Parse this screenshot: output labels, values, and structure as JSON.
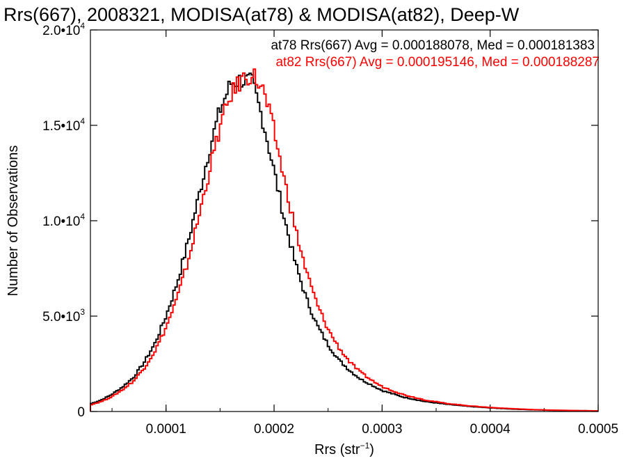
{
  "chart_data": {
    "type": "line",
    "title": "Rrs(667), 2008321, MODISA(at78) & MODISA(at82), Deep-W",
    "xlabel_main": "Rrs (str",
    "xlabel_sup": "−1",
    "xlabel_close": ")",
    "ylabel": "Number of Observations",
    "xlim": [
      3e-05,
      0.0005
    ],
    "ylim": [
      0,
      20000
    ],
    "x_ticks": [
      {
        "value": 0.0001,
        "label": "0.0001"
      },
      {
        "value": 0.0002,
        "label": "0.0002"
      },
      {
        "value": 0.0003,
        "label": "0.0003"
      },
      {
        "value": 0.0004,
        "label": "0.0004"
      },
      {
        "value": 0.0005,
        "label": "0.0005"
      }
    ],
    "y_ticks": [
      {
        "value": 0,
        "mant": "0",
        "exp": ""
      },
      {
        "value": 5000,
        "mant": "5.0•10",
        "exp": "3"
      },
      {
        "value": 10000,
        "mant": "1.0•10",
        "exp": "4"
      },
      {
        "value": 15000,
        "mant": "1.5•10",
        "exp": "4"
      },
      {
        "value": 20000,
        "mant": "2.0•10",
        "exp": "4"
      }
    ],
    "annotations": [
      {
        "text": "at78 Rrs(667) Avg = 0.000188078, Med = 0.000181383",
        "color": "#000000"
      },
      {
        "text": "at82 Rrs(667) Avg = 0.000195146, Med = 0.000188287",
        "color": "#ff0000"
      }
    ],
    "series": [
      {
        "color": "#000000",
        "x": [
          3e-05,
          4e-05,
          5e-05,
          6e-05,
          7e-05,
          8e-05,
          9e-05,
          0.0001,
          0.00011,
          0.00012,
          0.00013,
          0.00014,
          0.00015,
          0.00016,
          0.00017,
          0.00018,
          0.00019,
          0.0002,
          0.00021,
          0.00022,
          0.00023,
          0.00024,
          0.00025,
          0.00026,
          0.00027,
          0.00028,
          0.00029,
          0.0003,
          0.00032,
          0.00034,
          0.00036,
          0.00038,
          0.0004,
          0.00042,
          0.00044,
          0.00046,
          0.00048,
          0.0005
        ],
        "values": [
          400,
          600,
          900,
          1300,
          1800,
          2600,
          3600,
          5000,
          6700,
          8800,
          11200,
          13700,
          15800,
          17200,
          17400,
          17200,
          15200,
          12600,
          10000,
          7700,
          5900,
          4500,
          3500,
          2700,
          2150,
          1700,
          1400,
          1100,
          750,
          520,
          380,
          270,
          190,
          130,
          90,
          60,
          45,
          30
        ]
      },
      {
        "color": "#ff0000",
        "x": [
          3e-05,
          4e-05,
          5e-05,
          6e-05,
          7e-05,
          8e-05,
          9e-05,
          0.0001,
          0.00011,
          0.00012,
          0.00013,
          0.00014,
          0.00015,
          0.00016,
          0.00017,
          0.00018,
          0.00019,
          0.0002,
          0.00021,
          0.00022,
          0.00023,
          0.00024,
          0.00025,
          0.00026,
          0.00027,
          0.00028,
          0.00029,
          0.0003,
          0.00032,
          0.00034,
          0.00036,
          0.00038,
          0.0004,
          0.00042,
          0.00044,
          0.00046,
          0.00048,
          0.0005
        ],
        "values": [
          350,
          520,
          780,
          1150,
          1600,
          2300,
          3200,
          4400,
          5900,
          7800,
          10100,
          12600,
          14900,
          16600,
          17400,
          17700,
          16800,
          14700,
          12000,
          9500,
          7300,
          5600,
          4300,
          3350,
          2600,
          2050,
          1650,
          1300,
          880,
          600,
          420,
          300,
          210,
          150,
          100,
          70,
          50,
          35
        ]
      }
    ]
  }
}
